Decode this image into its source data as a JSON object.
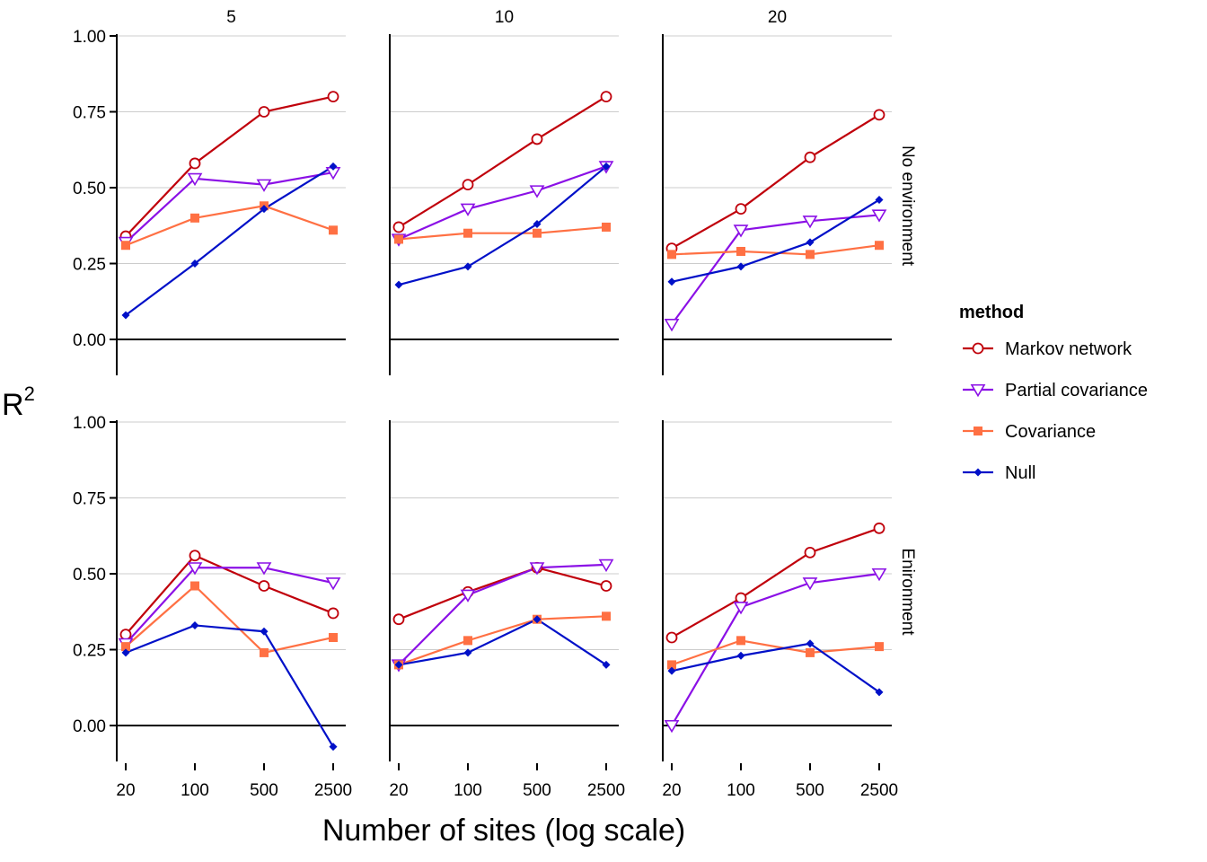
{
  "chart_data": {
    "type": "line",
    "facet_columns": [
      "5",
      "10",
      "20"
    ],
    "facet_rows": [
      "No environment",
      "Enironment"
    ],
    "x": [
      20,
      100,
      500,
      2500
    ],
    "x_ticks": [
      "20",
      "100",
      "500",
      "2500"
    ],
    "x_scale": "log",
    "xlabel": "Number of sites (log scale)",
    "ylabel": "R",
    "ylabel_superscript": "2",
    "ylim": [
      -0.12,
      1.02
    ],
    "y_ticks": [
      "1.00",
      "0.75",
      "0.50",
      "0.25",
      "0.00"
    ],
    "grid": true,
    "legend": {
      "title": "method",
      "position": "right",
      "entries": [
        "Markov network",
        "Partial covariance",
        "Covariance",
        "Null"
      ]
    },
    "series_style": [
      {
        "name": "Markov network",
        "color": "#c0000b",
        "marker": "open-circle"
      },
      {
        "name": "Partial covariance",
        "color": "#8b10e6",
        "marker": "open-triangle-down"
      },
      {
        "name": "Covariance",
        "color": "#ff7043",
        "marker": "filled-square"
      },
      {
        "name": "Null",
        "color": "#0010c8",
        "marker": "filled-diamond"
      }
    ],
    "panels": [
      {
        "row": "No environment",
        "column": "5",
        "series": [
          {
            "name": "Markov network",
            "values": [
              0.34,
              0.58,
              0.75,
              0.8
            ]
          },
          {
            "name": "Partial covariance",
            "values": [
              0.32,
              0.53,
              0.51,
              0.55
            ]
          },
          {
            "name": "Covariance",
            "values": [
              0.31,
              0.4,
              0.44,
              0.36
            ]
          },
          {
            "name": "Null",
            "values": [
              0.08,
              0.25,
              0.43,
              0.57
            ]
          }
        ]
      },
      {
        "row": "No environment",
        "column": "10",
        "series": [
          {
            "name": "Markov network",
            "values": [
              0.37,
              0.51,
              0.66,
              0.8
            ]
          },
          {
            "name": "Partial covariance",
            "values": [
              0.33,
              0.43,
              0.49,
              0.57
            ]
          },
          {
            "name": "Covariance",
            "values": [
              0.33,
              0.35,
              0.35,
              0.37
            ]
          },
          {
            "name": "Null",
            "values": [
              0.18,
              0.24,
              0.38,
              0.57
            ]
          }
        ]
      },
      {
        "row": "No environment",
        "column": "20",
        "series": [
          {
            "name": "Markov network",
            "values": [
              0.3,
              0.43,
              0.6,
              0.74
            ]
          },
          {
            "name": "Partial covariance",
            "values": [
              0.05,
              0.36,
              0.39,
              0.41
            ]
          },
          {
            "name": "Covariance",
            "values": [
              0.28,
              0.29,
              0.28,
              0.31
            ]
          },
          {
            "name": "Null",
            "values": [
              0.19,
              0.24,
              0.32,
              0.46
            ]
          }
        ]
      },
      {
        "row": "Enironment",
        "column": "5",
        "series": [
          {
            "name": "Markov network",
            "values": [
              0.3,
              0.56,
              0.46,
              0.37
            ]
          },
          {
            "name": "Partial covariance",
            "values": [
              0.27,
              0.52,
              0.52,
              0.47
            ]
          },
          {
            "name": "Covariance",
            "values": [
              0.26,
              0.46,
              0.24,
              0.29
            ]
          },
          {
            "name": "Null",
            "values": [
              0.24,
              0.33,
              0.31,
              -0.07
            ]
          }
        ]
      },
      {
        "row": "Enironment",
        "column": "10",
        "series": [
          {
            "name": "Markov network",
            "values": [
              0.35,
              0.44,
              0.52,
              0.46
            ]
          },
          {
            "name": "Partial covariance",
            "values": [
              0.2,
              0.43,
              0.52,
              0.53
            ]
          },
          {
            "name": "Covariance",
            "values": [
              0.2,
              0.28,
              0.35,
              0.36
            ]
          },
          {
            "name": "Null",
            "values": [
              0.2,
              0.24,
              0.35,
              0.2
            ]
          }
        ]
      },
      {
        "row": "Enironment",
        "column": "20",
        "series": [
          {
            "name": "Markov network",
            "values": [
              0.29,
              0.42,
              0.57,
              0.65
            ]
          },
          {
            "name": "Partial covariance",
            "values": [
              0.0,
              0.39,
              0.47,
              0.5
            ]
          },
          {
            "name": "Covariance",
            "values": [
              0.2,
              0.28,
              0.24,
              0.26
            ]
          },
          {
            "name": "Null",
            "values": [
              0.18,
              0.23,
              0.27,
              0.11
            ]
          }
        ]
      }
    ]
  }
}
